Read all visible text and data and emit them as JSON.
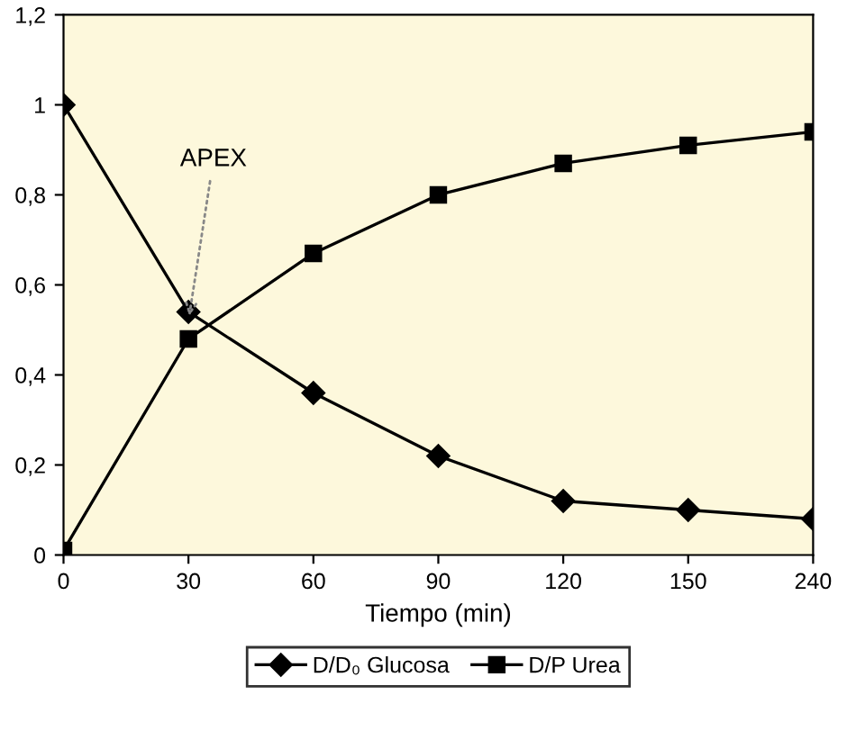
{
  "chart_data": {
    "type": "line",
    "xlabel": "Tiempo (min)",
    "categories": [
      "0",
      "30",
      "60",
      "90",
      "120",
      "150",
      "240"
    ],
    "series": [
      {
        "name": "D/D₀ Glucosa",
        "color": "#000000",
        "marker": "diamond",
        "values": [
          1.0,
          0.54,
          0.36,
          0.22,
          0.12,
          0.1,
          0.08
        ]
      },
      {
        "name": "D/P Urea",
        "color": "#000000",
        "marker": "square",
        "values": [
          0.01,
          0.48,
          0.67,
          0.8,
          0.87,
          0.91,
          0.94
        ]
      }
    ],
    "ylim": [
      0,
      1.2
    ],
    "yticks": [
      0,
      {
        "value": 0.2,
        "label": "0,2"
      },
      {
        "value": 0.4,
        "label": "0,4"
      },
      {
        "value": 0.6,
        "label": "0,6"
      },
      {
        "value": 0.8,
        "label": "0,8"
      },
      1,
      {
        "value": 1.2,
        "label": "1,2"
      }
    ],
    "annotations": [
      {
        "text": "APEX",
        "x": "30",
        "y": 0.52
      }
    ],
    "grid": false,
    "legend": "bottom",
    "line_style": "solid"
  }
}
